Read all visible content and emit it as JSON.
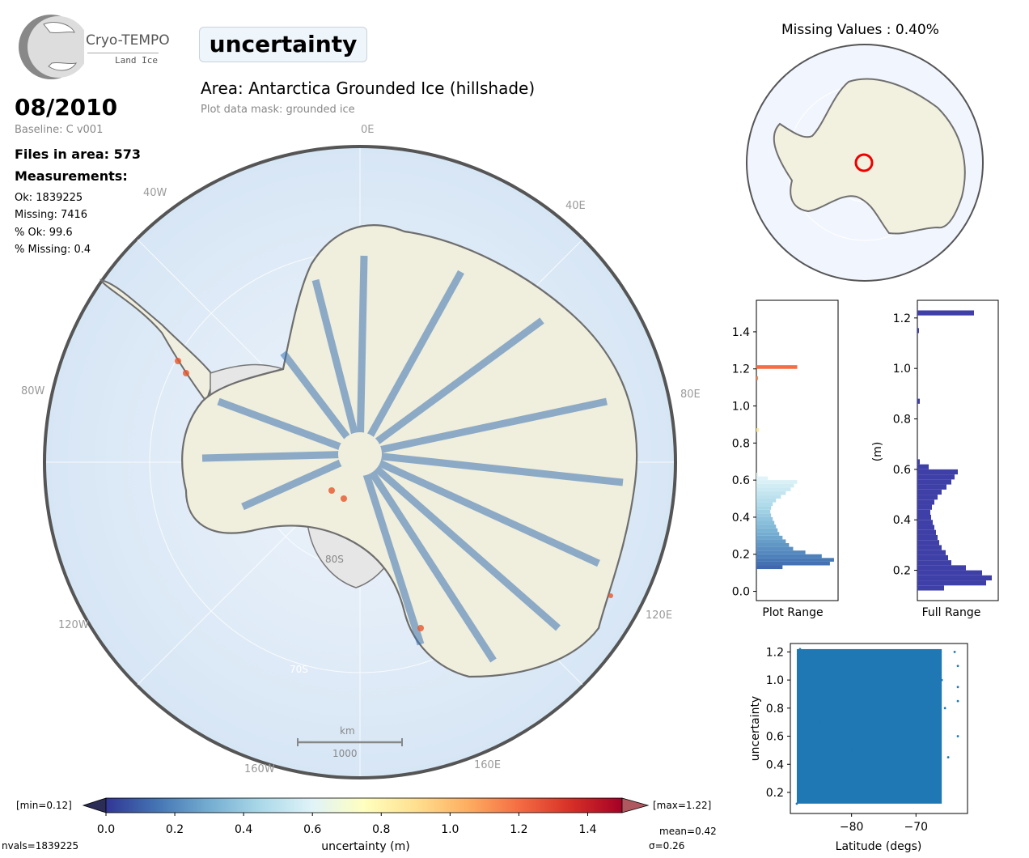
{
  "logo": {
    "name": "Cryo-TEMPO",
    "subtitle": "Land Ice"
  },
  "parameter": "uncertainty",
  "date": "08/2010",
  "baseline": "Baseline: C v001",
  "files_in_area": "Files in area: 573",
  "measurements_title": "Measurements:",
  "stats": {
    "ok": "Ok: 1839225",
    "missing": "Missing: 7416",
    "pct_ok": "% Ok: 99.6",
    "pct_missing": "% Missing: 0.4"
  },
  "area_title": "Area: Antarctica Grounded Ice (hillshade)",
  "mask_note": "Plot data mask: grounded ice",
  "missing_values_title": "Missing Values : 0.40%",
  "map": {
    "meridian_labels": [
      "0E",
      "40E",
      "80E",
      "120E",
      "160E",
      "160W",
      "120W",
      "80W",
      "40W"
    ],
    "latitude_labels": [
      "80S",
      "70S"
    ],
    "scalebar": {
      "unit": "km",
      "value": "1000"
    }
  },
  "colorbar": {
    "min_label": "[min=0.12]",
    "max_label": "[max=1.22]",
    "ticks": [
      "0.0",
      "0.2",
      "0.4",
      "0.6",
      "0.8",
      "1.0",
      "1.2",
      "1.4"
    ],
    "label": "uncertainty (m)",
    "mean": "mean=0.42",
    "sigma": "σ=0.26",
    "nvals": "nvals=1839225",
    "range": [
      0,
      1.5
    ]
  },
  "chart_data": [
    {
      "type": "bar",
      "title": "",
      "xlabel": "Plot Range",
      "ylabel": "",
      "ylim": [
        -0.05,
        1.57
      ],
      "yticks": [
        "0.0",
        "0.2",
        "0.4",
        "0.6",
        "0.8",
        "1.0",
        "1.2",
        "1.4"
      ],
      "bins": [
        [
          0.12,
          0.32
        ],
        [
          0.14,
          0.9
        ],
        [
          0.16,
          0.95
        ],
        [
          0.18,
          0.8
        ],
        [
          0.2,
          0.6
        ],
        [
          0.22,
          0.45
        ],
        [
          0.24,
          0.4
        ],
        [
          0.26,
          0.36
        ],
        [
          0.28,
          0.32
        ],
        [
          0.3,
          0.28
        ],
        [
          0.32,
          0.26
        ],
        [
          0.34,
          0.24
        ],
        [
          0.36,
          0.22
        ],
        [
          0.38,
          0.2
        ],
        [
          0.4,
          0.18
        ],
        [
          0.42,
          0.17
        ],
        [
          0.44,
          0.18
        ],
        [
          0.46,
          0.2
        ],
        [
          0.48,
          0.24
        ],
        [
          0.5,
          0.3
        ],
        [
          0.52,
          0.36
        ],
        [
          0.54,
          0.42
        ],
        [
          0.56,
          0.46
        ],
        [
          0.58,
          0.5
        ],
        [
          0.6,
          0.14
        ],
        [
          0.62,
          0.02
        ],
        [
          0.86,
          0.03
        ],
        [
          1.14,
          0.02
        ],
        [
          1.2,
          0.5
        ]
      ]
    },
    {
      "type": "bar",
      "title": "",
      "xlabel": "Full Range",
      "ylabel": "(m)",
      "ylim": [
        0.08,
        1.27
      ],
      "yticks": [
        "0.2",
        "0.4",
        "0.6",
        "0.8",
        "1.0",
        "1.2"
      ],
      "bins": [
        [
          0.12,
          0.33
        ],
        [
          0.14,
          0.85
        ],
        [
          0.16,
          0.92
        ],
        [
          0.18,
          0.8
        ],
        [
          0.2,
          0.6
        ],
        [
          0.22,
          0.42
        ],
        [
          0.24,
          0.38
        ],
        [
          0.26,
          0.35
        ],
        [
          0.28,
          0.3
        ],
        [
          0.3,
          0.27
        ],
        [
          0.32,
          0.25
        ],
        [
          0.34,
          0.23
        ],
        [
          0.36,
          0.21
        ],
        [
          0.38,
          0.19
        ],
        [
          0.4,
          0.17
        ],
        [
          0.42,
          0.16
        ],
        [
          0.44,
          0.18
        ],
        [
          0.46,
          0.21
        ],
        [
          0.48,
          0.25
        ],
        [
          0.5,
          0.3
        ],
        [
          0.52,
          0.36
        ],
        [
          0.54,
          0.42
        ],
        [
          0.56,
          0.46
        ],
        [
          0.58,
          0.5
        ],
        [
          0.6,
          0.14
        ],
        [
          0.62,
          0.03
        ],
        [
          0.86,
          0.03
        ],
        [
          1.14,
          0.02
        ],
        [
          1.21,
          0.7
        ]
      ]
    },
    {
      "type": "scatter",
      "title": "",
      "xlabel": "Latitude (degs)",
      "ylabel": "uncertainty",
      "xlim": [
        -89.5,
        -62
      ],
      "ylim": [
        0.05,
        1.26
      ],
      "xticks": [
        "−80",
        "−70"
      ],
      "yticks": [
        "0.2",
        "0.4",
        "0.6",
        "0.8",
        "1.0",
        "1.2"
      ],
      "x": [
        -88.5,
        -88,
        -85,
        -80,
        -75,
        -70,
        -66,
        -65.5,
        -65,
        -64,
        -63.5,
        -63.5,
        -63.5,
        -63.5
      ],
      "y": [
        0.12,
        1.22,
        0.7,
        0.5,
        0.3,
        0.6,
        1.0,
        0.8,
        0.45,
        1.2,
        1.1,
        0.95,
        0.85,
        0.6
      ]
    }
  ]
}
